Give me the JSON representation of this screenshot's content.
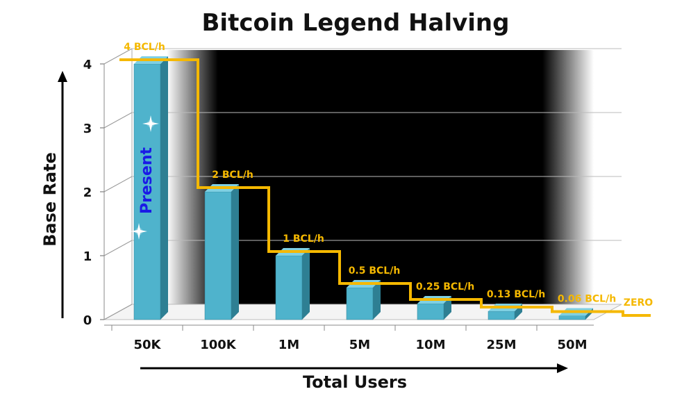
{
  "chart_data": {
    "type": "bar",
    "title": "Bitcoin Legend Halving",
    "xlabel": "Total Users",
    "ylabel": "Base Rate",
    "ylim": [
      0,
      4
    ],
    "yticks": [
      "0",
      "1",
      "2",
      "3",
      "4"
    ],
    "grid": true,
    "categories": [
      "50K",
      "100K",
      "1M",
      "5M",
      "10M",
      "25M",
      "50M"
    ],
    "values": [
      4,
      2,
      1,
      0.5,
      0.25,
      0.13,
      0.06
    ],
    "step_line_values": [
      4,
      2,
      1,
      0.5,
      0.25,
      0.13,
      0.06,
      0
    ],
    "rate_labels": [
      "4 BCL/h",
      "2 BCL/h",
      "1 BCL/h",
      "0.5 BCL/h",
      "0.25 BCL/h",
      "0.13 BCL/h",
      "0.06 BCL/h",
      "ZERO"
    ],
    "annotation": "Present",
    "colors": {
      "bar_front": "#4fb3cc",
      "bar_side": "#2e7f93",
      "bar_top": "#7fd0e3",
      "step_line": "#f5b800",
      "background_band": "#000000"
    }
  }
}
